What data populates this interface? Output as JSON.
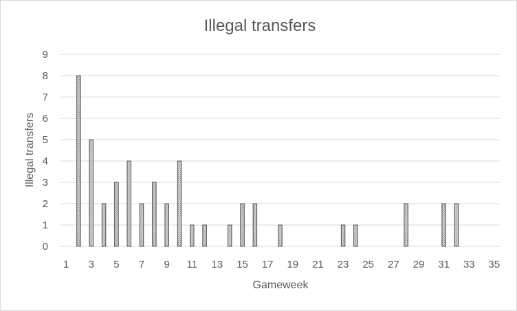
{
  "chart_data": {
    "type": "bar",
    "title": "Illegal transfers",
    "xlabel": "Gameweek",
    "ylabel": "Illegal transfers",
    "xlim": [
      1,
      35
    ],
    "ylim": [
      0,
      9
    ],
    "x_ticks": [
      1,
      3,
      5,
      7,
      9,
      11,
      13,
      15,
      17,
      19,
      21,
      23,
      25,
      27,
      29,
      31,
      33,
      35
    ],
    "y_ticks": [
      0,
      1,
      2,
      3,
      4,
      5,
      6,
      7,
      8,
      9
    ],
    "grid": "horizontal",
    "legend": "none",
    "bar_fill": "#c0c0c0",
    "bar_stroke": "#404040",
    "x": [
      2,
      3,
      4,
      5,
      6,
      7,
      8,
      9,
      10,
      11,
      12,
      14,
      15,
      16,
      18,
      23,
      24,
      28,
      31,
      32
    ],
    "values": [
      8,
      5,
      2,
      3,
      4,
      2,
      3,
      2,
      4,
      1,
      1,
      1,
      2,
      2,
      1,
      1,
      1,
      2,
      2,
      2
    ]
  }
}
